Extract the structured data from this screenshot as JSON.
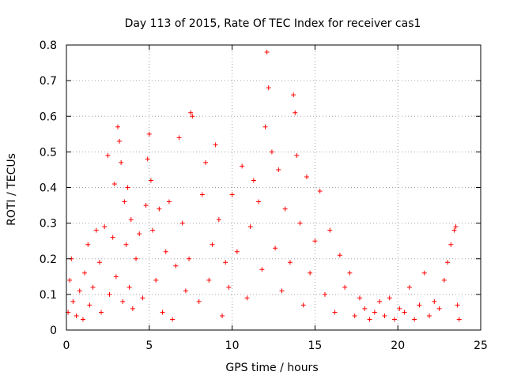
{
  "chart_data": {
    "type": "scatter",
    "title": "Day 113 of 2015, Rate Of TEC Index for receiver cas1",
    "xlabel": "GPS time / hours",
    "ylabel": "ROTI / TECUs",
    "xlim": [
      0,
      25
    ],
    "ylim": [
      0,
      0.8
    ],
    "xticks": [
      0,
      5,
      10,
      15,
      20,
      25
    ],
    "yticks": [
      0,
      0.1,
      0.2,
      0.3,
      0.4,
      0.5,
      0.6,
      0.7,
      0.8
    ],
    "xtick_labels": [
      "0",
      "5",
      "10",
      "15",
      "20",
      "25"
    ],
    "ytick_labels": [
      "0",
      "0.1",
      "0.2",
      "0.3",
      "0.4",
      "0.5",
      "0.6",
      "0.7",
      "0.8"
    ],
    "grid": true,
    "marker": "+",
    "color": "#ff0000",
    "series": [
      {
        "name": "cas1",
        "points": [
          [
            0.1,
            0.05
          ],
          [
            0.2,
            0.14
          ],
          [
            0.3,
            0.2
          ],
          [
            0.4,
            0.08
          ],
          [
            0.6,
            0.04
          ],
          [
            0.8,
            0.11
          ],
          [
            1.0,
            0.03
          ],
          [
            1.1,
            0.16
          ],
          [
            1.3,
            0.24
          ],
          [
            1.4,
            0.07
          ],
          [
            1.6,
            0.12
          ],
          [
            1.8,
            0.28
          ],
          [
            2.0,
            0.19
          ],
          [
            2.1,
            0.05
          ],
          [
            2.3,
            0.29
          ],
          [
            2.5,
            0.49
          ],
          [
            2.6,
            0.1
          ],
          [
            2.8,
            0.26
          ],
          [
            2.9,
            0.41
          ],
          [
            3.0,
            0.15
          ],
          [
            3.1,
            0.57
          ],
          [
            3.2,
            0.53
          ],
          [
            3.3,
            0.47
          ],
          [
            3.4,
            0.08
          ],
          [
            3.5,
            0.36
          ],
          [
            3.6,
            0.24
          ],
          [
            3.7,
            0.4
          ],
          [
            3.8,
            0.12
          ],
          [
            3.9,
            0.31
          ],
          [
            4.0,
            0.06
          ],
          [
            4.2,
            0.2
          ],
          [
            4.4,
            0.27
          ],
          [
            4.6,
            0.09
          ],
          [
            4.8,
            0.35
          ],
          [
            4.9,
            0.48
          ],
          [
            5.0,
            0.55
          ],
          [
            5.1,
            0.42
          ],
          [
            5.2,
            0.28
          ],
          [
            5.4,
            0.14
          ],
          [
            5.6,
            0.34
          ],
          [
            5.8,
            0.05
          ],
          [
            6.0,
            0.22
          ],
          [
            6.2,
            0.36
          ],
          [
            6.4,
            0.03
          ],
          [
            6.6,
            0.18
          ],
          [
            6.8,
            0.54
          ],
          [
            7.0,
            0.3
          ],
          [
            7.2,
            0.11
          ],
          [
            7.4,
            0.2
          ],
          [
            7.5,
            0.61
          ],
          [
            7.6,
            0.6
          ],
          [
            8.0,
            0.08
          ],
          [
            8.2,
            0.38
          ],
          [
            8.4,
            0.47
          ],
          [
            8.6,
            0.14
          ],
          [
            8.8,
            0.24
          ],
          [
            9.0,
            0.52
          ],
          [
            9.2,
            0.31
          ],
          [
            9.4,
            0.04
          ],
          [
            9.6,
            0.19
          ],
          [
            9.8,
            0.12
          ],
          [
            10.0,
            0.38
          ],
          [
            10.3,
            0.22
          ],
          [
            10.6,
            0.46
          ],
          [
            10.9,
            0.09
          ],
          [
            11.1,
            0.29
          ],
          [
            11.3,
            0.42
          ],
          [
            11.6,
            0.36
          ],
          [
            11.8,
            0.17
          ],
          [
            12.0,
            0.57
          ],
          [
            12.1,
            0.78
          ],
          [
            12.2,
            0.68
          ],
          [
            12.4,
            0.5
          ],
          [
            12.6,
            0.23
          ],
          [
            12.8,
            0.45
          ],
          [
            13.0,
            0.11
          ],
          [
            13.2,
            0.34
          ],
          [
            13.5,
            0.19
          ],
          [
            13.7,
            0.66
          ],
          [
            13.8,
            0.61
          ],
          [
            13.9,
            0.49
          ],
          [
            14.1,
            0.3
          ],
          [
            14.3,
            0.07
          ],
          [
            14.5,
            0.43
          ],
          [
            14.7,
            0.16
          ],
          [
            15.0,
            0.25
          ],
          [
            15.3,
            0.39
          ],
          [
            15.6,
            0.1
          ],
          [
            15.9,
            0.28
          ],
          [
            16.2,
            0.05
          ],
          [
            16.5,
            0.21
          ],
          [
            16.8,
            0.12
          ],
          [
            17.1,
            0.16
          ],
          [
            17.4,
            0.04
          ],
          [
            17.7,
            0.09
          ],
          [
            18.0,
            0.06
          ],
          [
            18.3,
            0.03
          ],
          [
            18.6,
            0.05
          ],
          [
            18.9,
            0.08
          ],
          [
            19.2,
            0.04
          ],
          [
            19.5,
            0.09
          ],
          [
            19.8,
            0.03
          ],
          [
            20.1,
            0.06
          ],
          [
            20.4,
            0.05
          ],
          [
            20.7,
            0.12
          ],
          [
            21.0,
            0.03
          ],
          [
            21.3,
            0.07
          ],
          [
            21.6,
            0.16
          ],
          [
            21.9,
            0.04
          ],
          [
            22.2,
            0.08
          ],
          [
            22.5,
            0.06
          ],
          [
            22.8,
            0.14
          ],
          [
            23.0,
            0.19
          ],
          [
            23.2,
            0.24
          ],
          [
            23.4,
            0.28
          ],
          [
            23.5,
            0.29
          ],
          [
            23.6,
            0.07
          ],
          [
            23.7,
            0.03
          ]
        ]
      }
    ]
  }
}
